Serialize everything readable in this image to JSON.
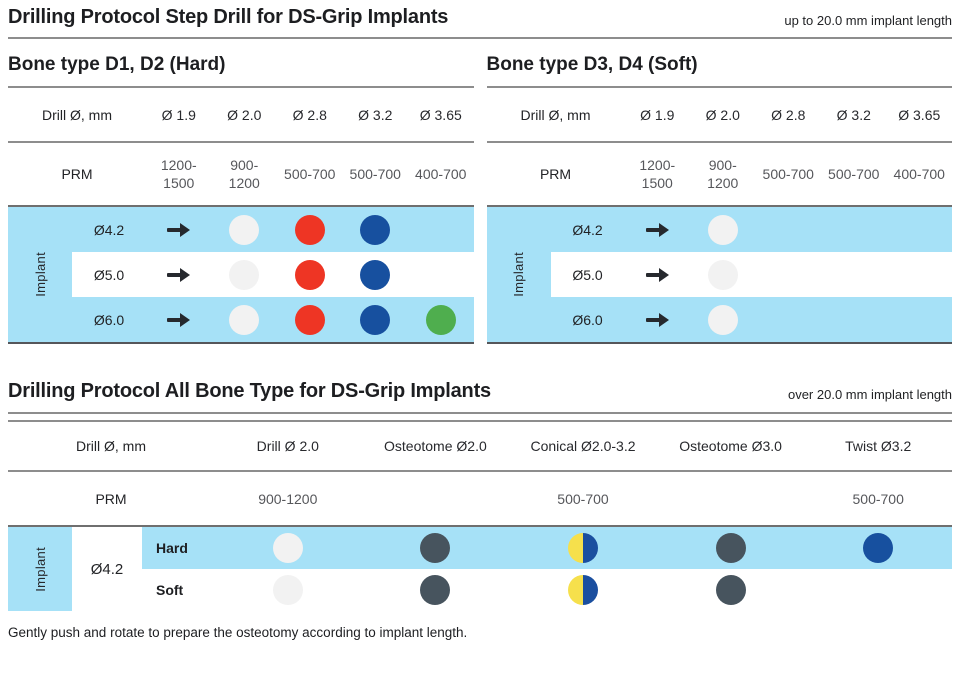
{
  "header": {
    "title": "Drilling Protocol Step Drill for DS-Grip Implants",
    "note": "up to 20.0 mm implant length"
  },
  "step_tables": [
    {
      "heading": "Bone type D1, D2 (Hard)",
      "drill_label": "Drill Ø, mm",
      "drill_sizes": [
        "Ø 1.9",
        "Ø 2.0",
        "Ø 2.8",
        "Ø 3.2",
        "Ø 3.65"
      ],
      "prm_label": "PRM",
      "prm_values": [
        "1200-1500",
        "900-1200",
        "500-700",
        "500-700",
        "400-700"
      ],
      "implant_label": "Implant",
      "rows": [
        {
          "label": "Ø4.2",
          "cells": [
            "arrow",
            "white",
            "red",
            "blue",
            "none"
          ]
        },
        {
          "label": "Ø5.0",
          "cells": [
            "arrow",
            "white",
            "red",
            "blue",
            "none"
          ]
        },
        {
          "label": "Ø6.0",
          "cells": [
            "arrow",
            "white",
            "red",
            "blue",
            "green"
          ]
        }
      ]
    },
    {
      "heading": "Bone type D3, D4 (Soft)",
      "drill_label": "Drill Ø, mm",
      "drill_sizes": [
        "Ø 1.9",
        "Ø 2.0",
        "Ø 2.8",
        "Ø 3.2",
        "Ø 3.65"
      ],
      "prm_label": "PRM",
      "prm_values": [
        "1200-1500",
        "900-1200",
        "500-700",
        "500-700",
        "400-700"
      ],
      "implant_label": "Implant",
      "rows": [
        {
          "label": "Ø4.2",
          "cells": [
            "arrow",
            "white",
            "none",
            "none",
            "none"
          ]
        },
        {
          "label": "Ø5.0",
          "cells": [
            "arrow",
            "white",
            "none",
            "none",
            "none"
          ]
        },
        {
          "label": "Ø6.0",
          "cells": [
            "arrow",
            "white",
            "none",
            "none",
            "none"
          ]
        }
      ]
    }
  ],
  "all_bone": {
    "heading": "Drilling Protocol All Bone Type for DS-Grip Implants",
    "note": "over 20.0 mm implant length",
    "drill_label": "Drill Ø, mm",
    "columns": [
      "Drill Ø 2.0",
      "Osteotome Ø2.0",
      "Conical Ø2.0-3.2",
      "Osteotome Ø3.0",
      "Twist Ø3.2"
    ],
    "prm_label": "PRM",
    "prm_values": [
      "900-1200",
      "",
      "500-700",
      "",
      "500-700"
    ],
    "implant_label": "Implant",
    "implant_size": "Ø4.2",
    "rows": [
      {
        "label": "Hard",
        "cells": [
          "white",
          "gray",
          "half-yellow-blue",
          "gray",
          "blue"
        ]
      },
      {
        "label": "Soft",
        "cells": [
          "white",
          "gray",
          "half-yellow-blue",
          "gray",
          "none"
        ]
      }
    ]
  },
  "footnote": "Gently push and rotate to prepare the osteotomy according to implant length.",
  "colors": {
    "highlight_bg": "#A6E1F7",
    "dot_white": "#F2F2F2",
    "dot_red": "#EE3524",
    "dot_blue": "#17509F",
    "dot_green": "#4FAE4E",
    "dot_gray": "#47545E",
    "dot_half_yellow": "#F6E04C",
    "dot_half_blue": "#1B4F9F"
  }
}
